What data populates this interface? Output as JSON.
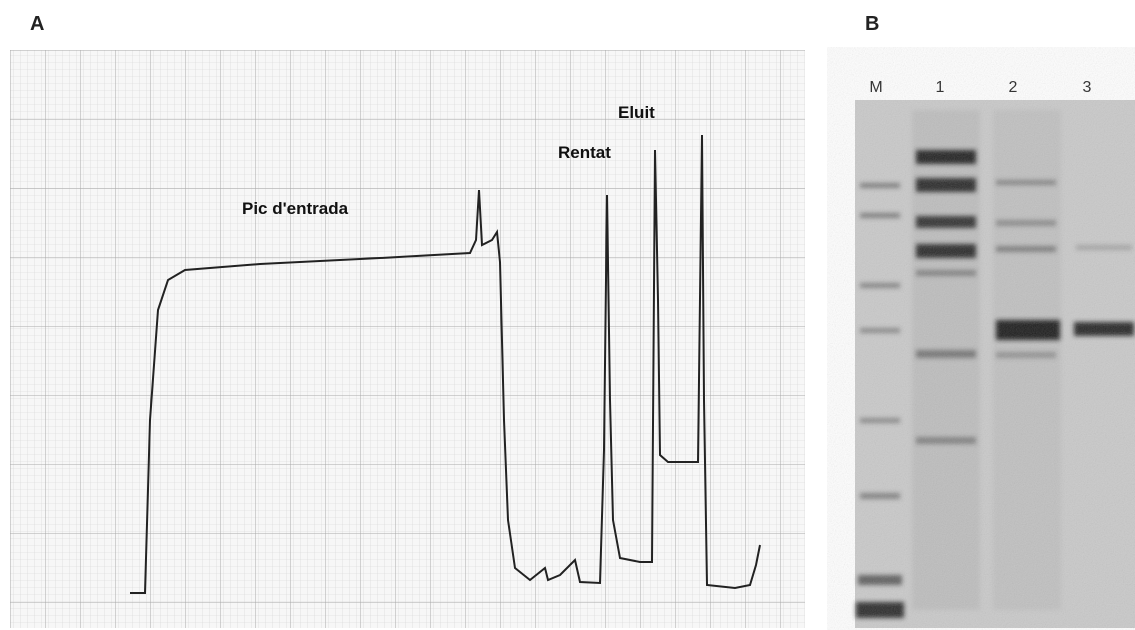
{
  "panels": [
    {
      "label": "A",
      "annotations": [
        "Pic d'entrada",
        "Rentat",
        "Eluit"
      ]
    },
    {
      "label": "B",
      "lanes": [
        "M",
        "1",
        "2",
        "3"
      ]
    }
  ]
}
